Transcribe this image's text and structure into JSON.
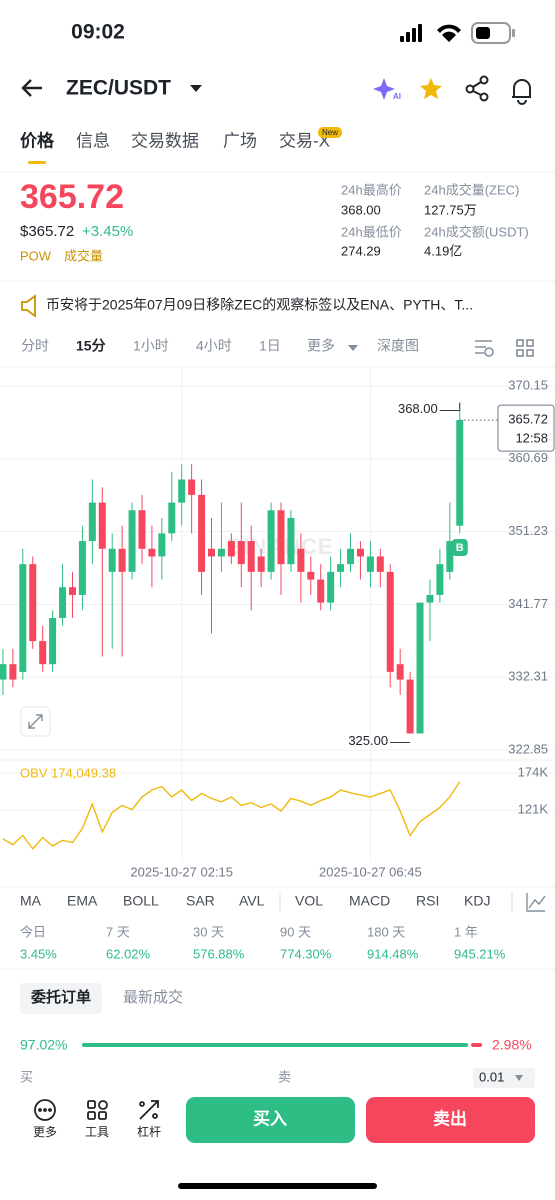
{
  "status_bar": {
    "time": "09:02"
  },
  "header": {
    "pair": "ZEC/USDT",
    "ai_badge": "AI"
  },
  "tabs": {
    "items": [
      "价格",
      "信息",
      "交易数据",
      "广场",
      "交易-X"
    ],
    "new_badge": "New"
  },
  "ticker": {
    "price": "365.72",
    "usd_price": "$365.72",
    "change": "+3.45%",
    "tags": [
      "POW",
      "成交量"
    ],
    "stats": [
      {
        "label": "24h最高价",
        "value": "368.00"
      },
      {
        "label": "24h成交量(ZEC)",
        "value": "127.75万"
      },
      {
        "label": "24h最低价",
        "value": "274.29"
      },
      {
        "label": "24h成交额(USDT)",
        "value": "4.19亿"
      }
    ]
  },
  "notice": "币安将于2025年07月09日移除ZEC的观察标签以及ENA、PYTH、T...",
  "intervals": [
    "分时",
    "15分",
    "1小时",
    "4小时",
    "1日",
    "更多",
    "深度图"
  ],
  "chart_data": {
    "type": "candlestick",
    "categories": [
      null,
      null,
      null,
      null,
      null,
      null,
      null,
      null,
      null,
      null,
      null,
      null,
      null,
      null,
      null,
      null,
      null,
      null,
      "2025-10-27 02:15",
      null,
      null,
      null,
      null,
      null,
      null,
      null,
      null,
      null,
      null,
      null,
      null,
      null,
      null,
      null,
      null,
      null,
      null,
      "2025-10-27 06:45",
      null,
      null,
      null,
      null,
      null,
      null,
      null,
      null,
      null
    ],
    "open": [
      332,
      334,
      333,
      347,
      337,
      334,
      340,
      344,
      343,
      350,
      355,
      346,
      349,
      346,
      354,
      349,
      348,
      351,
      355,
      358,
      356,
      349,
      348,
      350,
      350,
      350,
      348,
      346,
      354,
      347,
      349,
      346,
      345,
      342,
      346,
      347,
      349,
      346,
      348,
      346,
      334,
      332,
      325,
      342,
      343,
      346,
      352
    ],
    "high": [
      336,
      336,
      349,
      348,
      339,
      341,
      347,
      346,
      352,
      358,
      357,
      351,
      352,
      355,
      356,
      352,
      353,
      359,
      360,
      360,
      358,
      353,
      355,
      351,
      355,
      352,
      349,
      355,
      355,
      354,
      351,
      348,
      347,
      348,
      349,
      351,
      350,
      350,
      349,
      347,
      336,
      333,
      342,
      345,
      349,
      355,
      368
    ],
    "low": [
      330,
      331,
      332,
      336,
      333,
      333,
      339,
      340,
      341,
      347,
      335,
      336,
      335,
      345,
      347,
      344,
      345,
      350,
      352,
      351,
      343,
      338,
      346,
      347,
      344,
      341,
      344,
      345,
      343,
      346,
      342,
      343,
      341,
      341,
      344,
      346,
      345,
      344,
      344,
      331,
      330,
      325,
      325,
      337,
      342,
      345,
      351
    ],
    "close": [
      334,
      332,
      347,
      337,
      334,
      340,
      344,
      343,
      350,
      355,
      349,
      349,
      346,
      354,
      349,
      348,
      351,
      355,
      358,
      356,
      346,
      348,
      349,
      348,
      347,
      346,
      346,
      354,
      347,
      353,
      346,
      345,
      342,
      346,
      347,
      349,
      348,
      348,
      346,
      333,
      332,
      325,
      342,
      343,
      347,
      350,
      365.72
    ],
    "up_color": "#2ebd85",
    "down_color": "#f6465d",
    "ylim": [
      321.55,
      372.49
    ],
    "yticks": [
      370.15,
      360.69,
      351.23,
      341.77,
      332.31,
      322.85
    ],
    "annotations": [
      {
        "value": 368,
        "label": "368.00"
      },
      {
        "value": 325,
        "label": "325.00"
      }
    ],
    "countdown": "12:58",
    "watermark": "BINANCE",
    "marker_label": "B",
    "obv": {
      "title": "OBV 174,049.38",
      "color": "#f0b90b",
      "values": [
        80000,
        72000,
        85000,
        66000,
        82000,
        70000,
        78000,
        75000,
        95000,
        130000,
        90000,
        118000,
        128000,
        122000,
        140000,
        150000,
        155000,
        140000,
        150000,
        135000,
        145000,
        138000,
        133000,
        140000,
        128000,
        132000,
        125000,
        130000,
        120000,
        138000,
        134000,
        128000,
        135000,
        140000,
        150000,
        146000,
        143000,
        140000,
        145000,
        150000,
        120000,
        85000,
        105000,
        115000,
        125000,
        140000,
        162000
      ],
      "ylim": [
        50000,
        190000
      ],
      "yticks": [
        {
          "value": 174000,
          "label": "174K"
        },
        {
          "value": 121000,
          "label": "121K"
        }
      ]
    }
  },
  "indicators": [
    "MA",
    "EMA",
    "BOLL",
    "SAR",
    "AVL",
    "VOL",
    "MACD",
    "RSI",
    "KDJ"
  ],
  "performance": [
    {
      "label": "今日",
      "value": "3.45%"
    },
    {
      "label": "7 天",
      "value": "62.02%"
    },
    {
      "label": "30 天",
      "value": "576.88%"
    },
    {
      "label": "90 天",
      "value": "774.30%"
    },
    {
      "label": "180 天",
      "value": "914.48%"
    },
    {
      "label": "1 年",
      "value": "945.21%"
    }
  ],
  "order_book": {
    "tabs": [
      "委托订单",
      "最新成交"
    ],
    "values": [
      97.02,
      2.98
    ],
    "value_labels": [
      "97.02%",
      "2.98%"
    ],
    "buy_label": "买",
    "sell_label": "卖",
    "precision": "0.01"
  },
  "bottom_bar": {
    "tools": [
      "更多",
      "工具",
      "杠杆"
    ],
    "buy": "买入",
    "sell": "卖出"
  }
}
